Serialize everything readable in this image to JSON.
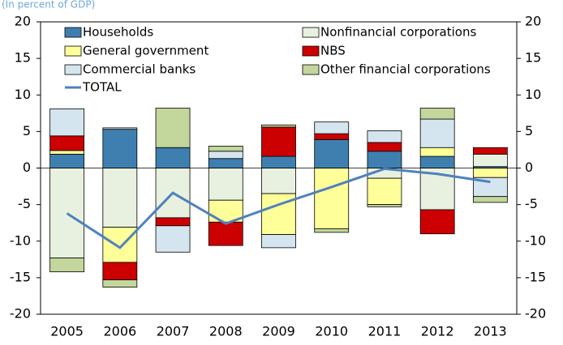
{
  "chart_data": {
    "type": "bar",
    "subtitle": "(In percent of GDP)",
    "categories": [
      "2005",
      "2006",
      "2007",
      "2008",
      "2009",
      "2010",
      "2011",
      "2012",
      "2013"
    ],
    "series": [
      {
        "name": "Households",
        "color": "#3f7fb0",
        "values": [
          1.9,
          5.3,
          2.8,
          1.3,
          1.6,
          3.9,
          2.3,
          1.6,
          0.2
        ]
      },
      {
        "name": "Nonfinancial corporations",
        "color": "#e8f1df",
        "values": [
          -12.3,
          -8.1,
          -6.8,
          -4.4,
          -3.5,
          0,
          -1.4,
          -5.7,
          1.7
        ]
      },
      {
        "name": "General government",
        "color": "#ffff99",
        "values": [
          0.5,
          -4.8,
          0,
          -3.0,
          -5.6,
          -8.3,
          -3.6,
          1.2,
          -1.3
        ]
      },
      {
        "name": "NBS",
        "color": "#cc0000",
        "values": [
          2.0,
          -2.4,
          -1.1,
          -3.2,
          4.0,
          0.8,
          1.2,
          -3.3,
          0.9
        ]
      },
      {
        "name": "Commercial banks",
        "color": "#d5e5ef",
        "values": [
          3.7,
          0.2,
          -3.6,
          1.0,
          -1.8,
          1.6,
          1.6,
          3.9,
          -2.6
        ]
      },
      {
        "name": "Other financial corporations",
        "color": "#c3d69b",
        "values": [
          -1.9,
          -1.0,
          5.4,
          0.7,
          0.3,
          -0.5,
          -0.3,
          1.5,
          -0.8
        ]
      },
      {
        "name": "TOTAL",
        "type": "line",
        "color": "#4f81bd",
        "values": [
          -6.2,
          -10.9,
          -3.4,
          -7.6,
          -5.0,
          -2.6,
          -0.1,
          -0.8,
          -1.9
        ]
      }
    ],
    "ylim": [
      -20,
      20
    ],
    "yticks": [
      -20,
      -15,
      -10,
      -5,
      0,
      5,
      10,
      15,
      20
    ],
    "y2lim": [
      -20,
      20
    ],
    "y2ticks": [
      -20,
      -15,
      -10,
      -5,
      0,
      5,
      10,
      15,
      20
    ]
  }
}
